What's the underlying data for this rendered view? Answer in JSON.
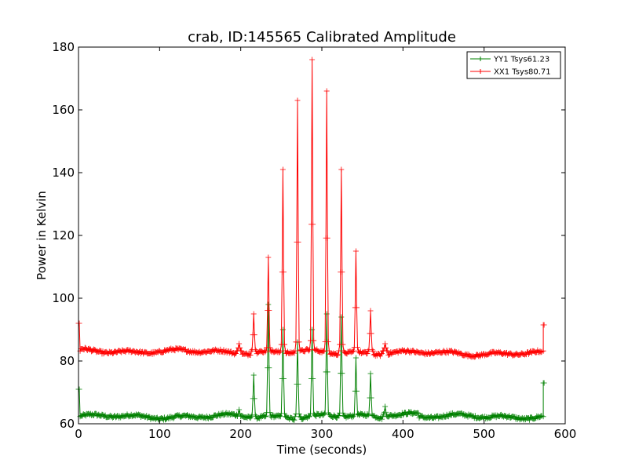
{
  "chart_data": {
    "type": "line",
    "title": "crab, ID:145565 Calibrated Amplitude",
    "xlabel": "Time (seconds)",
    "ylabel": "Power in Kelvin",
    "xlim": [
      0,
      600
    ],
    "ylim": [
      60,
      180
    ],
    "xticks": [
      0,
      100,
      200,
      300,
      400,
      500,
      600
    ],
    "yticks": [
      60,
      80,
      100,
      120,
      140,
      160,
      180
    ],
    "xtick_labels": [
      "0",
      "100",
      "200",
      "300",
      "400",
      "500",
      "600"
    ],
    "ytick_labels": [
      "60",
      "80",
      "100",
      "120",
      "140",
      "160",
      "180"
    ],
    "grid": false,
    "legend_position": "top-right",
    "series": [
      {
        "name": "YY1 Tsys61.23",
        "color": "#008000",
        "baseline": 62.3,
        "start": [
          0,
          71
        ],
        "end": [
          573,
          73
        ],
        "peaks": [
          {
            "x": 198,
            "y": 64.5
          },
          {
            "x": 216,
            "y": 75.5
          },
          {
            "x": 234,
            "y": 98
          },
          {
            "x": 252,
            "y": 90
          },
          {
            "x": 270,
            "y": 86
          },
          {
            "x": 288,
            "y": 90
          },
          {
            "x": 306,
            "y": 95
          },
          {
            "x": 324,
            "y": 94
          },
          {
            "x": 342,
            "y": 81
          },
          {
            "x": 360,
            "y": 76
          },
          {
            "x": 378,
            "y": 65.5
          }
        ]
      },
      {
        "name": "XX1 Tsys80.71",
        "color": "#ff0000",
        "baseline": 83.2,
        "start": [
          0,
          92
        ],
        "end": [
          573,
          91.5
        ],
        "peaks": [
          {
            "x": 198,
            "y": 85.5
          },
          {
            "x": 216,
            "y": 95
          },
          {
            "x": 234,
            "y": 113
          },
          {
            "x": 252,
            "y": 141
          },
          {
            "x": 270,
            "y": 163
          },
          {
            "x": 288,
            "y": 176
          },
          {
            "x": 306,
            "y": 166
          },
          {
            "x": 324,
            "y": 141
          },
          {
            "x": 342,
            "y": 115
          },
          {
            "x": 360,
            "y": 96
          },
          {
            "x": 378,
            "y": 85.5
          }
        ]
      }
    ]
  }
}
